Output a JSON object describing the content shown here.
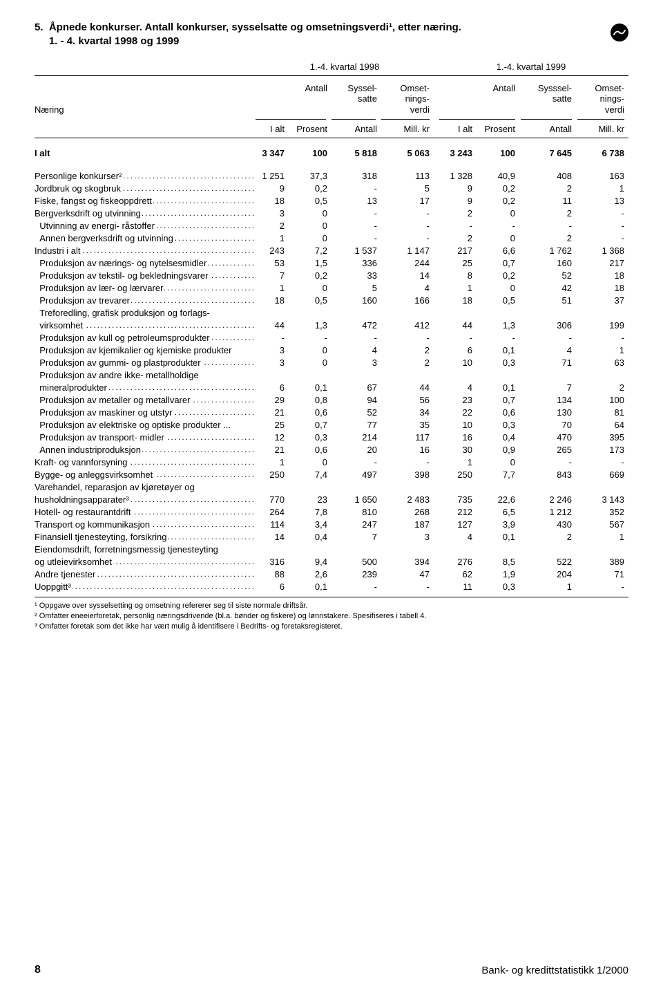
{
  "title_line1": "5.  Åpnede konkurser. Antall konkurser, sysselsatte og omsetningsverdi¹, etter næring.",
  "title_line2": "     1. - 4. kvartal  1998 og 1999",
  "period1": "1.-4. kvartal 1998",
  "period2": "1.-4. kvartal 1999",
  "label_heading": "Næring",
  "gh_antall": "Antall",
  "gh_syssel1": "Syssel-\nsatte",
  "gh_omset": "Omset-\nnings-\nverdi",
  "gh_syssel2": "Sysssel-\nsatte",
  "sh_ialt": "I alt",
  "sh_prosent": "Prosent",
  "sh_antall": "Antall",
  "sh_millkr": "Mill. kr",
  "total": {
    "label": "I alt",
    "v": [
      "3 347",
      "100",
      "5 818",
      "5 063",
      "3 243",
      "100",
      "7 645",
      "6 738"
    ]
  },
  "rows": [
    {
      "label": "Personlige konkurser²",
      "v": [
        "1 251",
        "37,3",
        "318",
        "113",
        "1 328",
        "40,9",
        "408",
        "163"
      ]
    },
    {
      "label": "Jordbruk og skogbruk",
      "v": [
        "9",
        "0,2",
        "-",
        "5",
        "9",
        "0,2",
        "2",
        "1"
      ]
    },
    {
      "label": "Fiske, fangst og fiskeoppdrett",
      "v": [
        "18",
        "0,5",
        "13",
        "17",
        "9",
        "0,2",
        "11",
        "13"
      ]
    },
    {
      "label": "Bergverksdrift og utvinning",
      "v": [
        "3",
        "0",
        "-",
        "-",
        "2",
        "0",
        "2",
        "-"
      ]
    },
    {
      "label": "  Utvinning av energi- råstoffer",
      "v": [
        "2",
        "0",
        "-",
        "-",
        "-",
        "-",
        "-",
        "-"
      ]
    },
    {
      "label": "  Annen bergverksdrift og utvinning",
      "v": [
        "1",
        "0",
        "-",
        "-",
        "2",
        "0",
        "2",
        "-"
      ]
    },
    {
      "label": "Industri i alt",
      "v": [
        "243",
        "7,2",
        "1 537",
        "1 147",
        "217",
        "6,6",
        "1 762",
        "1 368"
      ]
    },
    {
      "label": "  Produksjon av nærings- og nytelsesmidler",
      "v": [
        "53",
        "1,5",
        "336",
        "244",
        "25",
        "0,7",
        "160",
        "217"
      ]
    },
    {
      "label": "  Produksjon av tekstil- og bekledningsvarer",
      "v": [
        "7",
        "0,2",
        "33",
        "14",
        "8",
        "0,2",
        "52",
        "18"
      ]
    },
    {
      "label": "  Produksjon av lær- og lærvarer",
      "v": [
        "1",
        "0",
        "5",
        "4",
        "1",
        "0",
        "42",
        "18"
      ]
    },
    {
      "label": "  Produksjon av trevarer",
      "v": [
        "18",
        "0,5",
        "160",
        "166",
        "18",
        "0,5",
        "51",
        "37"
      ]
    },
    {
      "label": "  Treforedling, grafisk produksjon og forlags-",
      "nodots": true,
      "v": [
        "",
        "",
        "",
        "",
        "",
        "",
        "",
        ""
      ]
    },
    {
      "label": "  virksomhet",
      "v": [
        "44",
        "1,3",
        "472",
        "412",
        "44",
        "1,3",
        "306",
        "199"
      ]
    },
    {
      "label": "  Produksjon av kull og petroleumsprodukter",
      "v": [
        "-",
        "-",
        "-",
        "-",
        "-",
        "-",
        "-",
        "-"
      ]
    },
    {
      "label": "  Produksjon av kjemikalier og kjemiske produkter",
      "nodots": true,
      "v": [
        "3",
        "0",
        "4",
        "2",
        "6",
        "0,1",
        "4",
        "1"
      ]
    },
    {
      "label": "  Produksjon av gummi- og plastprodukter",
      "v": [
        "3",
        "0",
        "3",
        "2",
        "10",
        "0,3",
        "71",
        "63"
      ]
    },
    {
      "label": "  Produksjon av andre ikke- metallholdige",
      "nodots": true,
      "v": [
        "",
        "",
        "",
        "",
        "",
        "",
        "",
        ""
      ]
    },
    {
      "label": "  mineralprodukter",
      "v": [
        "6",
        "0,1",
        "67",
        "44",
        "4",
        "0,1",
        "7",
        "2"
      ]
    },
    {
      "label": "  Produksjon av metaller og metallvarer",
      "v": [
        "29",
        "0,8",
        "94",
        "56",
        "23",
        "0,7",
        "134",
        "100"
      ]
    },
    {
      "label": "  Produksjon av maskiner og utstyr",
      "v": [
        "21",
        "0,6",
        "52",
        "34",
        "22",
        "0,6",
        "130",
        "81"
      ]
    },
    {
      "label": "  Produksjon av elektriske og optiske produkter",
      "nodots": true,
      "postlabel": " ...",
      "v": [
        "25",
        "0,7",
        "77",
        "35",
        "10",
        "0,3",
        "70",
        "64"
      ]
    },
    {
      "label": "  Produksjon av transport- midler",
      "v": [
        "12",
        "0,3",
        "214",
        "117",
        "16",
        "0,4",
        "470",
        "395"
      ]
    },
    {
      "label": "  Annen industriproduksjon",
      "v": [
        "21",
        "0,6",
        "20",
        "16",
        "30",
        "0,9",
        "265",
        "173"
      ]
    },
    {
      "label": "Kraft- og vannforsyning",
      "v": [
        "1",
        "0",
        "-",
        "-",
        "1",
        "0",
        "-",
        "-"
      ]
    },
    {
      "label": "Bygge- og anleggsvirksomhet",
      "v": [
        "250",
        "7,4",
        "497",
        "398",
        "250",
        "7,7",
        "843",
        "669"
      ]
    },
    {
      "label": "Varehandel, reparasjon av kjøretøyer og",
      "nodots": true,
      "v": [
        "",
        "",
        "",
        "",
        "",
        "",
        "",
        ""
      ]
    },
    {
      "label": "husholdningsapparater³",
      "v": [
        "770",
        "23",
        "1 650",
        "2 483",
        "735",
        "22,6",
        "2 246",
        "3 143"
      ]
    },
    {
      "label": "Hotell- og restaurantdrift",
      "v": [
        "264",
        "7,8",
        "810",
        "268",
        "212",
        "6,5",
        "1 212",
        "352"
      ]
    },
    {
      "label": "Transport og kommunikasjon",
      "v": [
        "114",
        "3,4",
        "247",
        "187",
        "127",
        "3,9",
        "430",
        "567"
      ]
    },
    {
      "label": "Finansiell tjenesteyting, forsikring",
      "v": [
        "14",
        "0,4",
        "7",
        "3",
        "4",
        "0,1",
        "2",
        "1"
      ]
    },
    {
      "label": "Eiendomsdrift, forretningsmessig tjenesteyting",
      "nodots": true,
      "v": [
        "",
        "",
        "",
        "",
        "",
        "",
        "",
        ""
      ]
    },
    {
      "label": "og utleievirksomhet",
      "v": [
        "316",
        "9,4",
        "500",
        "394",
        "276",
        "8,5",
        "522",
        "389"
      ]
    },
    {
      "label": "Andre tjenester",
      "v": [
        "88",
        "2,6",
        "239",
        "47",
        "62",
        "1,9",
        "204",
        "71"
      ]
    },
    {
      "label": "Uoppgitt³",
      "v": [
        "6",
        "0,1",
        "-",
        "-",
        "11",
        "0,3",
        "1",
        "-"
      ]
    }
  ],
  "footnote1": "¹ Oppgave over sysselsetting og omsetning refererer seg til siste normale driftsår.",
  "footnote2": "² Omfatter eneeierforetak, personlig næringsdrivende (bl.a. bønder og fiskere) og lønnstakere. Spesifiseres i tabell 4.",
  "footnote3": "³ Omfatter foretak som det ikke har vært mulig å identifisere i Bedrifts- og foretaksregisteret.",
  "page_number": "8",
  "publication": "Bank- og kredittstatistikk 1/2000"
}
